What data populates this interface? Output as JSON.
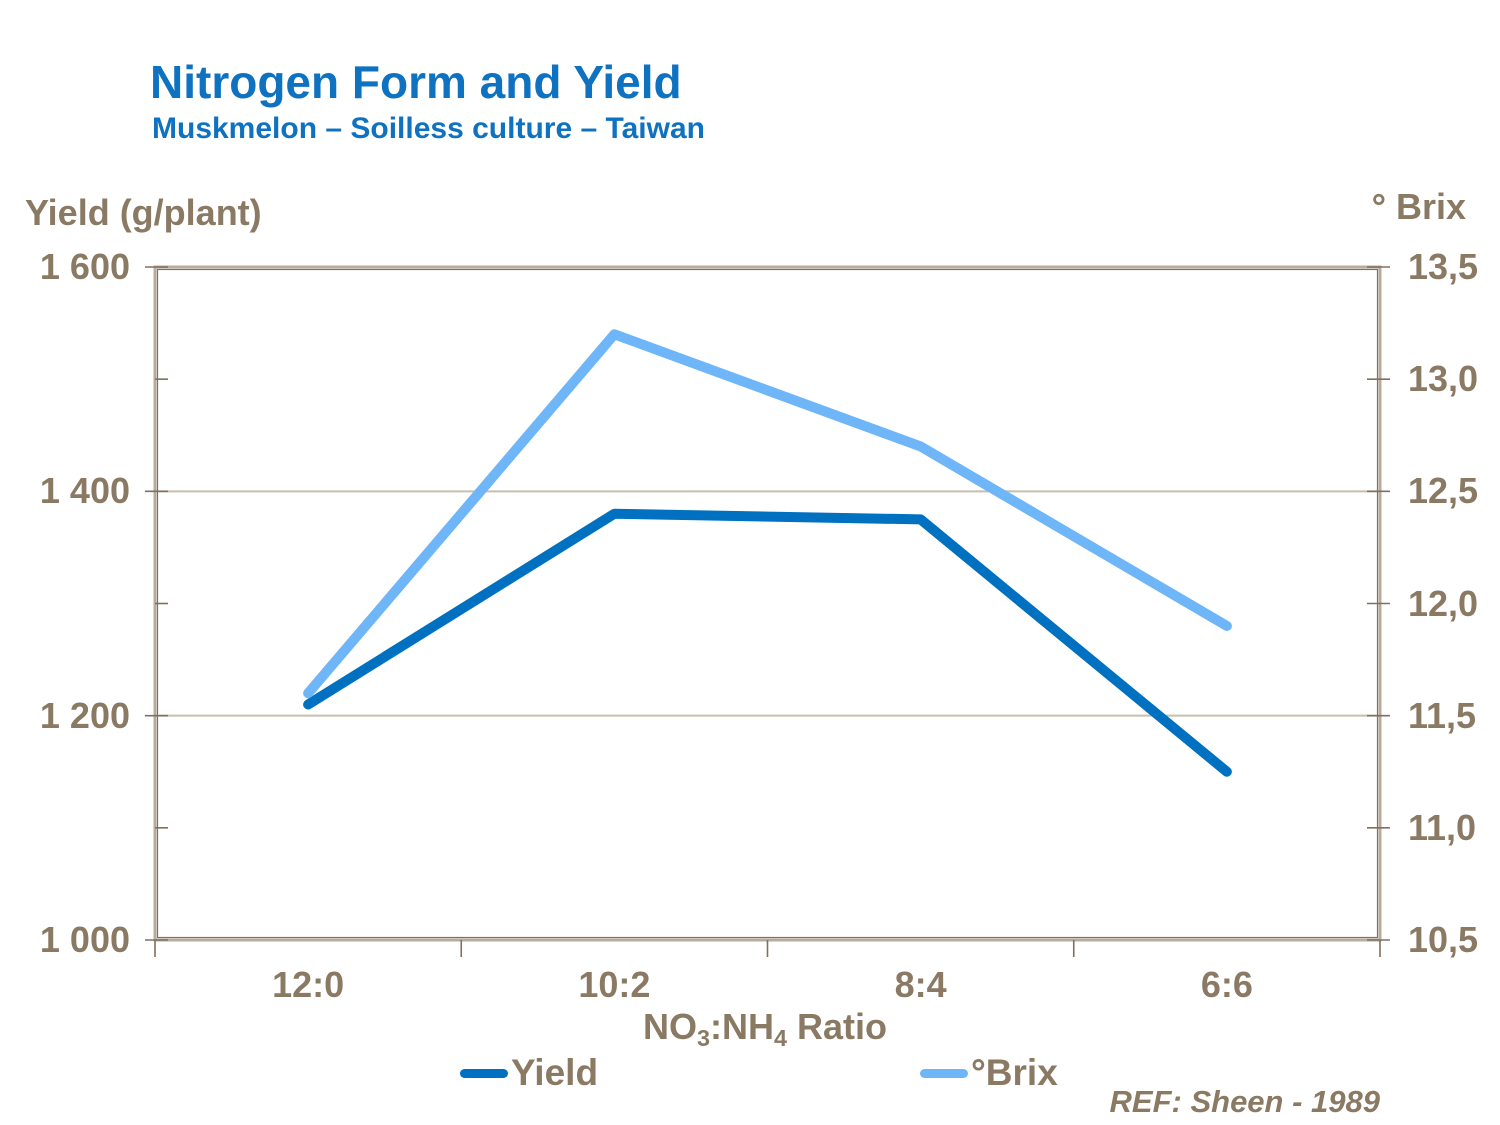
{
  "header": {
    "title": "Nitrogen Form and Yield",
    "subtitle": "Muskmelon – Soilless culture – Taiwan"
  },
  "footnote": "REF: Sheen - 1989",
  "colors": {
    "title_blue": "#0F72C1",
    "axis_text": "#8A7963",
    "grid": "#C9BEAD",
    "frame_light": "#B8AC9C",
    "frame_dark": "#80705C",
    "yield_line": "#0070C0",
    "brix_line": "#6FB6F8",
    "background": "#FFFFFF"
  },
  "chart_data": {
    "type": "line",
    "title": "Nitrogen Form and Yield",
    "subtitle": "Muskmelon – Soilless culture – Taiwan",
    "categories": [
      "12:0",
      "10:2",
      "8:4",
      "6:6"
    ],
    "x_axis": {
      "title_plain": "NO3:NH4 Ratio",
      "title_parts": [
        {
          "text": "NO"
        },
        {
          "text": "3",
          "sub": true
        },
        {
          "text": ":NH"
        },
        {
          "text": "4",
          "sub": true
        },
        {
          "text": " Ratio"
        }
      ]
    },
    "axes": {
      "left": {
        "title": "Yield (g/plant)",
        "min": 1000,
        "max": 1600,
        "major_step": 200,
        "minor_step": 100,
        "tick_labels": [
          {
            "value": 1600,
            "label": "1 600"
          },
          {
            "value": 1400,
            "label": "1 400"
          },
          {
            "value": 1200,
            "label": "1 200"
          },
          {
            "value": 1000,
            "label": "1 000"
          }
        ]
      },
      "right": {
        "title": "° Brix",
        "min": 10.5,
        "max": 13.5,
        "major_step": 0.5,
        "tick_labels": [
          {
            "value": 13.5,
            "label": "13,5"
          },
          {
            "value": 13.0,
            "label": "13,0"
          },
          {
            "value": 12.5,
            "label": "12,5"
          },
          {
            "value": 12.0,
            "label": "12,0"
          },
          {
            "value": 11.5,
            "label": "11,5"
          },
          {
            "value": 11.0,
            "label": "11,0"
          },
          {
            "value": 10.5,
            "label": "10,5"
          }
        ]
      }
    },
    "series": [
      {
        "name": "Yield",
        "axis": "left",
        "color": "#0070C0",
        "values": [
          1210,
          1380,
          1375,
          1150
        ]
      },
      {
        "name": "°Brix",
        "axis": "right",
        "color": "#6FB6F8",
        "values": [
          11.6,
          13.2,
          12.7,
          11.9
        ]
      }
    ],
    "legend": [
      {
        "label": "Yield",
        "color": "#0070C0"
      },
      {
        "label": "°Brix",
        "color": "#6FB6F8"
      }
    ],
    "grid": true,
    "legend_position": "bottom"
  }
}
